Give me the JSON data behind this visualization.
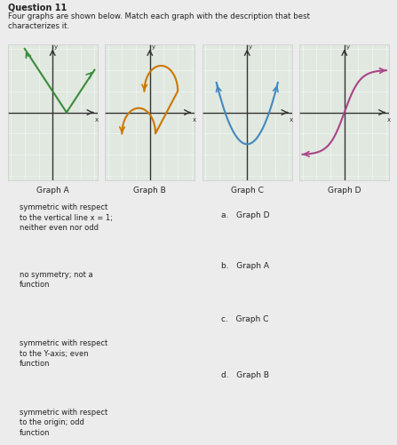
{
  "title": "Question 11",
  "intro_text": "Four graphs are shown below. Match each graph with the description that best\ncharacterizes it.",
  "background_color": "#ececec",
  "graph_bg": "#e0e8e0",
  "graph_border": "#cccccc",
  "graph_labels": [
    "Graph A",
    "Graph B",
    "Graph C",
    "Graph D"
  ],
  "graph_colors": [
    "#3a8c3a",
    "#cc7700",
    "#4488bb",
    "#aa4488"
  ],
  "left_descriptions": [
    "symmetric with respect\nto the vertical line x = 1;\nneither even nor odd",
    "no symmetry; not a\nfunction",
    "symmetric with respect\nto the Y-axis; even\nfunction",
    "symmetric with respect\nto the origin; odd\nfunction"
  ],
  "right_answers": [
    "a.   Graph D",
    "b.   Graph A",
    "c.   Graph C",
    "d.   Graph B"
  ],
  "box_bg": "#f5f5f5",
  "box_border": "#bbbbbb",
  "text_color": "#222222",
  "axis_color": "#333333"
}
